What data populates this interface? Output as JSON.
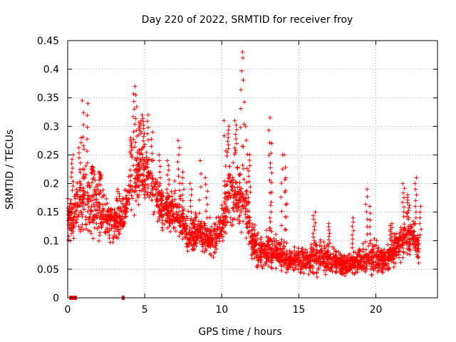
{
  "chart_data": {
    "type": "scatter",
    "title": "Day 220 of 2022, SRMTID for receiver froy",
    "xlabel": "GPS time / hours",
    "ylabel": "SRMTID / TECUs",
    "xlim": [
      0,
      24
    ],
    "ylim": [
      0,
      0.45
    ],
    "x_ticks": [
      "0",
      "5",
      "10",
      "15",
      "20"
    ],
    "x_tick_values": [
      0,
      5,
      10,
      15,
      20
    ],
    "y_ticks": [
      "0",
      "0.05",
      "0.1",
      "0.15",
      "0.2",
      "0.25",
      "0.3",
      "0.35",
      "0.4",
      "0.45"
    ],
    "y_tick_values": [
      0,
      0.05,
      0.1,
      0.15,
      0.2,
      0.25,
      0.3,
      0.35,
      0.4,
      0.45
    ],
    "grid": true,
    "marker": "plus",
    "color": "#ff0000",
    "series": [
      {
        "name": "SRMTID",
        "envelope": [
          [
            0.0,
            0.09,
            0.17
          ],
          [
            0.5,
            0.1,
            0.2
          ],
          [
            1.0,
            0.1,
            0.26
          ],
          [
            1.5,
            0.09,
            0.22
          ],
          [
            2.0,
            0.11,
            0.21
          ],
          [
            2.5,
            0.09,
            0.19
          ],
          [
            3.0,
            0.1,
            0.17
          ],
          [
            3.5,
            0.1,
            0.17
          ],
          [
            4.0,
            0.13,
            0.24
          ],
          [
            4.5,
            0.15,
            0.28
          ],
          [
            5.0,
            0.17,
            0.3
          ],
          [
            5.5,
            0.15,
            0.24
          ],
          [
            6.0,
            0.12,
            0.2
          ],
          [
            6.5,
            0.11,
            0.19
          ],
          [
            7.0,
            0.1,
            0.2
          ],
          [
            7.5,
            0.09,
            0.17
          ],
          [
            8.0,
            0.07,
            0.15
          ],
          [
            8.5,
            0.08,
            0.15
          ],
          [
            9.0,
            0.07,
            0.14
          ],
          [
            9.5,
            0.07,
            0.14
          ],
          [
            10.0,
            0.09,
            0.16
          ],
          [
            10.5,
            0.1,
            0.27
          ],
          [
            11.0,
            0.11,
            0.25
          ],
          [
            11.5,
            0.1,
            0.22
          ],
          [
            12.0,
            0.06,
            0.13
          ],
          [
            12.5,
            0.05,
            0.11
          ],
          [
            13.0,
            0.05,
            0.12
          ],
          [
            13.5,
            0.05,
            0.11
          ],
          [
            14.0,
            0.04,
            0.1
          ],
          [
            14.5,
            0.04,
            0.09
          ],
          [
            15.0,
            0.04,
            0.09
          ],
          [
            15.5,
            0.04,
            0.09
          ],
          [
            16.0,
            0.04,
            0.1
          ],
          [
            16.5,
            0.04,
            0.1
          ],
          [
            17.0,
            0.04,
            0.09
          ],
          [
            17.5,
            0.04,
            0.08
          ],
          [
            18.0,
            0.03,
            0.08
          ],
          [
            18.5,
            0.04,
            0.08
          ],
          [
            19.0,
            0.04,
            0.09
          ],
          [
            19.5,
            0.04,
            0.1
          ],
          [
            20.0,
            0.04,
            0.1
          ],
          [
            20.5,
            0.04,
            0.09
          ],
          [
            21.0,
            0.05,
            0.1
          ],
          [
            21.5,
            0.06,
            0.13
          ],
          [
            22.0,
            0.07,
            0.15
          ],
          [
            22.5,
            0.08,
            0.14
          ],
          [
            22.8,
            0.05,
            0.11
          ]
        ],
        "peaks": [
          [
            0.3,
            0.25
          ],
          [
            0.8,
            0.28
          ],
          [
            1.0,
            0.345
          ],
          [
            1.3,
            0.34
          ],
          [
            1.6,
            0.23
          ],
          [
            2.1,
            0.22
          ],
          [
            3.3,
            0.19
          ],
          [
            4.1,
            0.28
          ],
          [
            4.3,
            0.37
          ],
          [
            4.4,
            0.355
          ],
          [
            4.7,
            0.31
          ],
          [
            4.9,
            0.32
          ],
          [
            5.2,
            0.32
          ],
          [
            5.5,
            0.29
          ],
          [
            6.0,
            0.25
          ],
          [
            6.5,
            0.24
          ],
          [
            7.2,
            0.275
          ],
          [
            7.5,
            0.22
          ],
          [
            8.0,
            0.2
          ],
          [
            8.6,
            0.24
          ],
          [
            9.0,
            0.21
          ],
          [
            10.2,
            0.31
          ],
          [
            10.4,
            0.3
          ],
          [
            10.9,
            0.31
          ],
          [
            11.3,
            0.43
          ],
          [
            11.4,
            0.42
          ],
          [
            11.6,
            0.3
          ],
          [
            11.8,
            0.25
          ],
          [
            13.1,
            0.315
          ],
          [
            13.2,
            0.27
          ],
          [
            13.9,
            0.25
          ],
          [
            14.1,
            0.25
          ],
          [
            14.2,
            0.21
          ],
          [
            16.0,
            0.15
          ],
          [
            17.0,
            0.13
          ],
          [
            18.5,
            0.14
          ],
          [
            19.4,
            0.19
          ],
          [
            19.6,
            0.16
          ],
          [
            21.0,
            0.13
          ],
          [
            21.8,
            0.2
          ],
          [
            22.1,
            0.18
          ],
          [
            22.6,
            0.21
          ],
          [
            22.9,
            0.16
          ]
        ],
        "zero_points": [
          [
            0.2,
            0.0
          ],
          [
            0.3,
            0.0
          ],
          [
            0.5,
            0.0
          ],
          [
            3.6,
            0.0
          ]
        ],
        "random_seed": 220,
        "sample_count": 2600
      }
    ]
  }
}
